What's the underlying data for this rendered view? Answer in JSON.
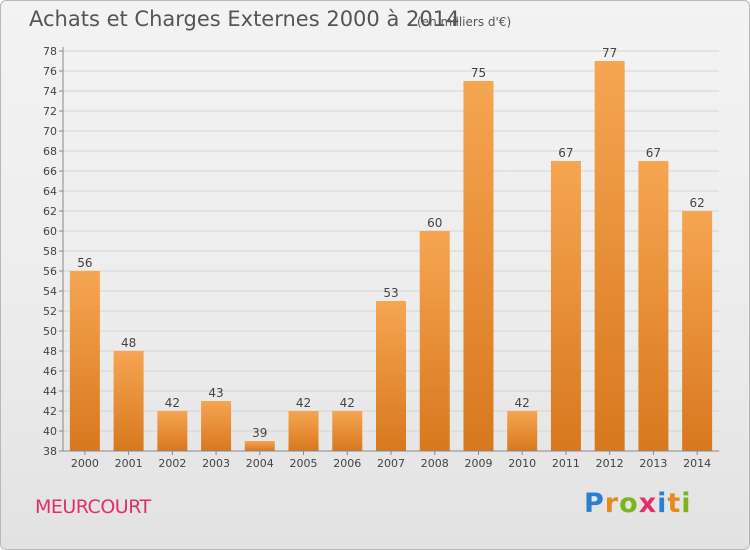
{
  "header": {
    "title": "Achats et Charges Externes 2000 à 2014",
    "unit_note": "(en milliers d'€)"
  },
  "footer": {
    "commune": "MEURCOURT",
    "logo_text": "Proxiti",
    "logo_letter_colors": [
      "#2a7fd0",
      "#e88a1a",
      "#7ab51d",
      "#e0306a",
      "#2a7fd0",
      "#e88a1a",
      "#7ab51d"
    ]
  },
  "chart_data": {
    "type": "bar",
    "categories": [
      "2000",
      "2001",
      "2002",
      "2003",
      "2004",
      "2005",
      "2006",
      "2007",
      "2008",
      "2009",
      "2010",
      "2011",
      "2012",
      "2013",
      "2014"
    ],
    "values": [
      56,
      48,
      42,
      43,
      39,
      42,
      42,
      53,
      60,
      75,
      42,
      67,
      77,
      67,
      62
    ],
    "title": "Achats et Charges Externes 2000 à 2014",
    "ylim": [
      38,
      78
    ],
    "yticks": [
      38,
      40,
      42,
      44,
      46,
      48,
      50,
      52,
      54,
      56,
      58,
      60,
      62,
      64,
      66,
      68,
      70,
      72,
      74,
      76,
      78
    ],
    "grid": true,
    "bar_color_light": "#f6a552",
    "bar_color_dark": "#d8781e"
  }
}
